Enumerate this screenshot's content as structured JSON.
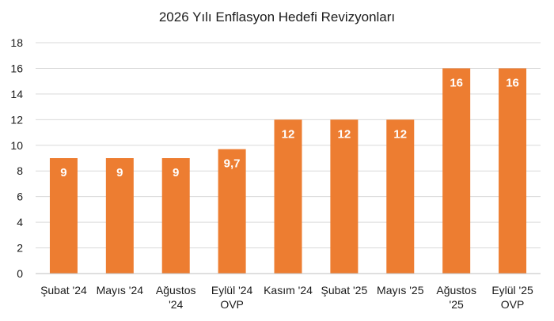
{
  "chart_data": {
    "type": "bar",
    "title": "2026 Yılı Enflasyon Hedefi Revizyonları",
    "categories": [
      [
        "Şubat '24"
      ],
      [
        "Mayıs '24"
      ],
      [
        "Ağustos",
        "'24"
      ],
      [
        "Eylül '24",
        "OVP"
      ],
      [
        "Kasım '24"
      ],
      [
        "Şubat '25"
      ],
      [
        "Mayıs '25"
      ],
      [
        "Ağustos",
        "'25"
      ],
      [
        "Eylül '25",
        "OVP"
      ]
    ],
    "values": [
      9,
      9,
      9,
      9.7,
      12,
      12,
      12,
      16,
      16
    ],
    "data_labels": [
      "9",
      "9",
      "9",
      "9,7",
      "12",
      "12",
      "12",
      "16",
      "16"
    ],
    "xlabel": "",
    "ylabel": "",
    "ylim": [
      0,
      18
    ],
    "yticks": [
      0,
      2,
      4,
      6,
      8,
      10,
      12,
      14,
      16,
      18
    ],
    "grid": true,
    "legend": "none",
    "bar_color": "#ED7D31"
  }
}
